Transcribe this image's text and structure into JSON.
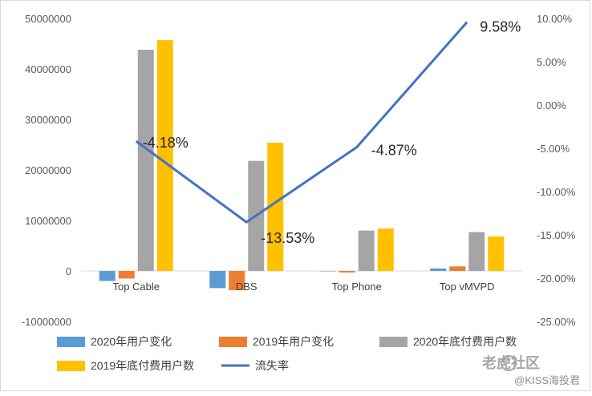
{
  "chart_data": {
    "type": "bar",
    "categories": [
      "Top Cable",
      "DBS",
      "Top Phone",
      "Top vMVPD"
    ],
    "series": [
      {
        "name": "2020年用户变化",
        "type": "bar",
        "axis": "left",
        "color": "#5b9bd5",
        "values": [
          -2000000,
          -3400000,
          0,
          500000
        ]
      },
      {
        "name": "2019年用户变化",
        "type": "bar",
        "axis": "left",
        "color": "#ed7d31",
        "values": [
          -1500000,
          -3800000,
          -300000,
          900000
        ]
      },
      {
        "name": "2020年底付费用户数",
        "type": "bar",
        "axis": "left",
        "color": "#a5a5a5",
        "values": [
          43800000,
          21800000,
          8000000,
          7700000
        ]
      },
      {
        "name": "2019年底付费用户数",
        "type": "bar",
        "axis": "left",
        "color": "#ffc000",
        "values": [
          45700000,
          25400000,
          8400000,
          6800000
        ]
      },
      {
        "name": "流失率",
        "type": "line",
        "axis": "right",
        "color": "#4472c4",
        "values": [
          -4.18,
          -13.53,
          -4.87,
          9.58
        ]
      }
    ],
    "data_labels": [
      "-4.18%",
      "-13.53%",
      "-4.87%",
      "9.58%"
    ],
    "y_left": {
      "min": -10000000,
      "max": 50000000,
      "ticks": [
        -10000000,
        0,
        10000000,
        20000000,
        30000000,
        40000000,
        50000000
      ],
      "tick_labels": [
        "-10000000",
        "0",
        "10000000",
        "20000000",
        "30000000",
        "40000000",
        "50000000"
      ]
    },
    "y_right": {
      "min": -25,
      "max": 10,
      "ticks": [
        -25,
        -20,
        -15,
        -10,
        -5,
        0,
        5,
        10
      ],
      "tick_labels": [
        "-25.00%",
        "-20.00%",
        "-15.00%",
        "-10.00%",
        "-5.00%",
        "0.00%",
        "5.00%",
        "10.00%"
      ]
    },
    "grid": false,
    "legend": "bottom"
  },
  "watermark": {
    "text_main": "老虎社区",
    "text_sub": "@KISS海投君"
  }
}
